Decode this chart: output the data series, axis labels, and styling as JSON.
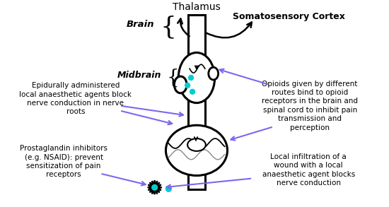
{
  "bg_color": "#ffffff",
  "black": "#000000",
  "purple": "#7b68ee",
  "teal": "#00CED1",
  "brain_label": "Brain",
  "thalamus_label": "Thalamus",
  "somatosensory_label": "Somatosensory Cortex",
  "midbrain_label": "Midbrain",
  "epidural_text": "Epidurally administered\nlocal anaesthetic agents block\nnerve conduction in nerve\nroots",
  "opioid_text": "Opioids given by different\nroutes bind to opioid\nreceptors in the brain and\nspinal cord to inhibit pain\ntransmission and\nperception",
  "prostaglandin_text": "Prostaglandin inhibitors\n(e.g. NSAID): prevent\nsensitization of pain\nreceptors",
  "local_infiltration_text": "Local infiltration of a\nwound with a local\nanaesthetic agent blocks\nnerve conduction",
  "fig_width": 5.5,
  "fig_height": 2.93,
  "dpi": 100
}
